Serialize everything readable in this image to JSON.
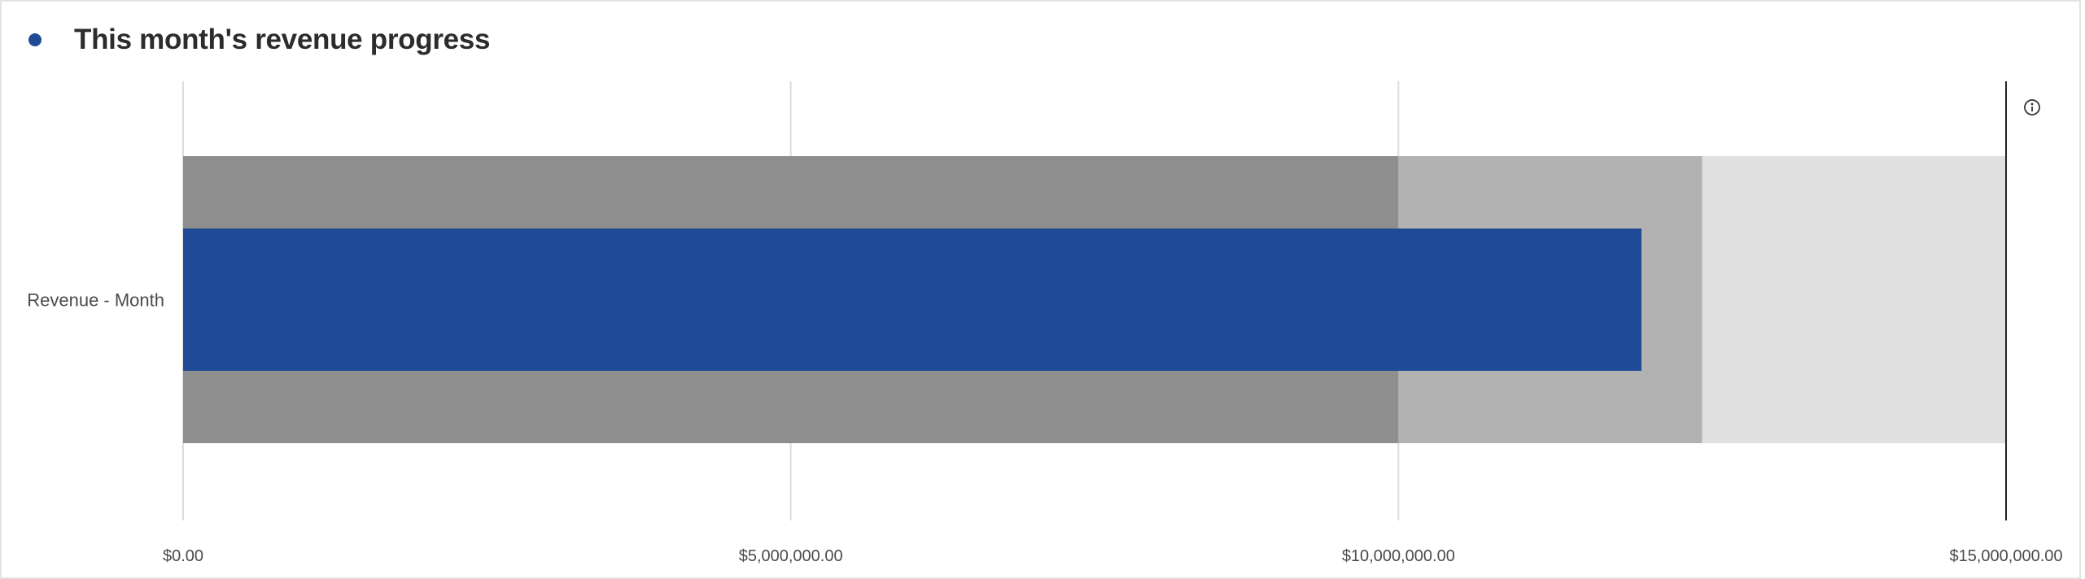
{
  "widget": {
    "title": "This month's revenue progress",
    "accent_color": "#1e4a96",
    "info_icon": "info-circle-icon"
  },
  "chart_data": {
    "type": "bar",
    "orientation": "horizontal",
    "variant": "bullet",
    "categories": [
      "Revenue - Month"
    ],
    "values": [
      12000000
    ],
    "series": [
      {
        "values": [
          12000000
        ],
        "color": "#1e4a96"
      }
    ],
    "qualitative_ranges": [
      {
        "from": 0,
        "to": 10000000,
        "color": "#8e8e8e"
      },
      {
        "from": 10000000,
        "to": 12500000,
        "color": "#b2b2b2"
      },
      {
        "from": 12500000,
        "to": 15000000,
        "color": "#e0e0e0"
      }
    ],
    "target": 15000000,
    "xlim": [
      0,
      15000000
    ],
    "xticks": [
      0,
      5000000,
      10000000,
      15000000
    ],
    "xtick_labels": [
      "$0.00",
      "$5,000,000.00",
      "$10,000,000.00",
      "$15,000,000.00"
    ],
    "grid": true,
    "title": "This month's revenue progress",
    "xlabel": "",
    "ylabel": ""
  }
}
